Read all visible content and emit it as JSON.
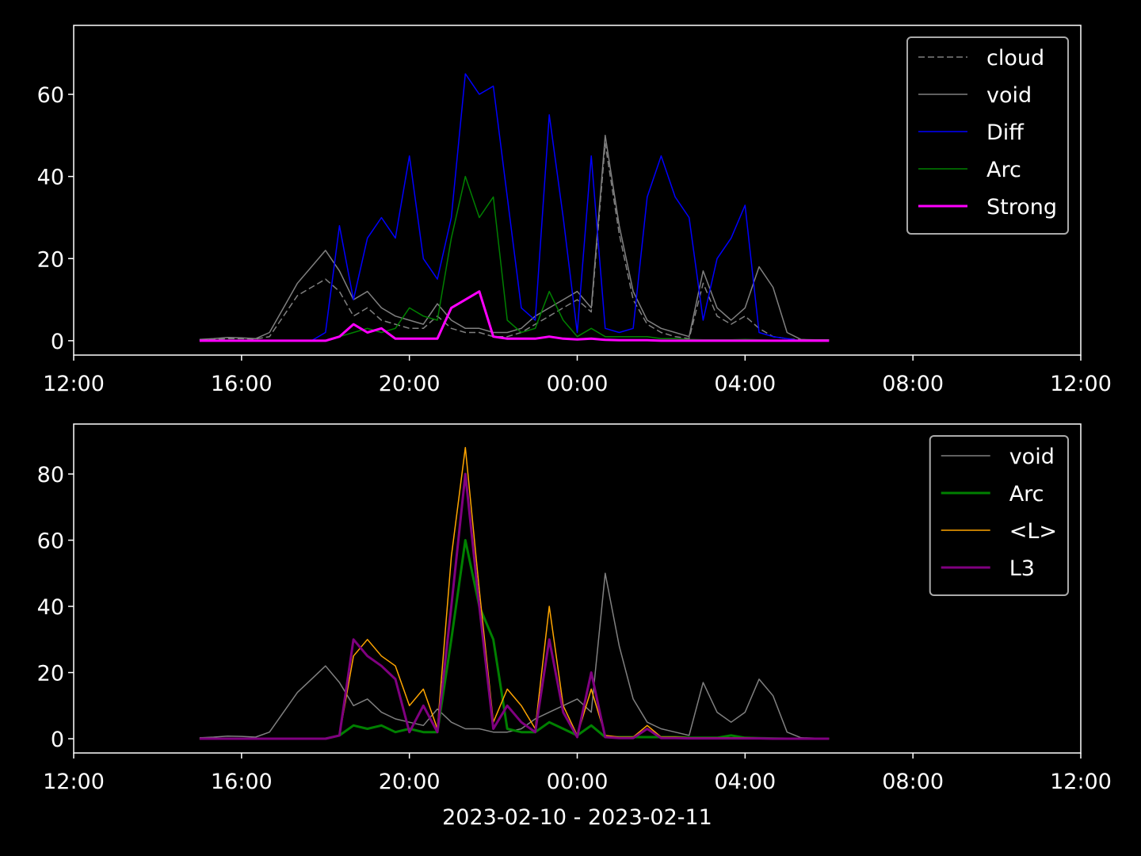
{
  "chart_data": [
    {
      "type": "line",
      "legend": "upper right",
      "x": [
        "2023-02-10 15:00",
        "2023-02-10 15:20",
        "2023-02-10 15:40",
        "2023-02-10 16:00",
        "2023-02-10 16:20",
        "2023-02-10 16:40",
        "2023-02-10 17:00",
        "2023-02-10 17:20",
        "2023-02-10 17:40",
        "2023-02-10 18:00",
        "2023-02-10 18:20",
        "2023-02-10 18:40",
        "2023-02-10 19:00",
        "2023-02-10 19:20",
        "2023-02-10 19:40",
        "2023-02-10 20:00",
        "2023-02-10 20:20",
        "2023-02-10 20:40",
        "2023-02-10 21:00",
        "2023-02-10 21:20",
        "2023-02-10 21:40",
        "2023-02-10 22:00",
        "2023-02-10 22:20",
        "2023-02-10 22:40",
        "2023-02-10 23:00",
        "2023-02-10 23:20",
        "2023-02-10 23:40",
        "2023-02-11 00:00",
        "2023-02-11 00:20",
        "2023-02-11 00:40",
        "2023-02-11 01:00",
        "2023-02-11 01:20",
        "2023-02-11 01:40",
        "2023-02-11 02:00",
        "2023-02-11 02:20",
        "2023-02-11 02:40",
        "2023-02-11 03:00",
        "2023-02-11 03:20",
        "2023-02-11 03:40",
        "2023-02-11 04:00",
        "2023-02-11 04:20",
        "2023-02-11 04:40",
        "2023-02-11 05:00",
        "2023-02-11 05:20",
        "2023-02-11 05:40",
        "2023-02-11 06:00"
      ],
      "xlim": [
        "2023-02-10 12:00",
        "2023-02-11 12:00"
      ],
      "xticks": [
        {
          "value": "2023-02-10 12:00",
          "label": "12:00"
        },
        {
          "value": "2023-02-10 16:00",
          "label": "16:00"
        },
        {
          "value": "2023-02-10 20:00",
          "label": "20:00"
        },
        {
          "value": "2023-02-11 00:00",
          "label": "00:00"
        },
        {
          "value": "2023-02-11 04:00",
          "label": "04:00"
        },
        {
          "value": "2023-02-11 08:00",
          "label": "08:00"
        },
        {
          "value": "2023-02-11 12:00",
          "label": "12:00"
        }
      ],
      "ylim": [
        -3.5,
        76.8
      ],
      "yticks": [
        0,
        20,
        40,
        60
      ],
      "series": [
        {
          "name": "cloud",
          "color": "#808080",
          "linestyle": "dashed",
          "linewidth": 1.5,
          "values": [
            0.2,
            0.3,
            0.5,
            0.5,
            0.4,
            1,
            6,
            11,
            13,
            15,
            12,
            6,
            8,
            5,
            4,
            3,
            3,
            6,
            3,
            2,
            2,
            1,
            1,
            2,
            4,
            6,
            8,
            10,
            7,
            48,
            26,
            10,
            4,
            2,
            1,
            0.5,
            14,
            6,
            4,
            6,
            3,
            1,
            0.5,
            0.2,
            0.1,
            0.1
          ]
        },
        {
          "name": "void",
          "color": "#808080",
          "linestyle": "solid",
          "linewidth": 1.5,
          "values": [
            0.3,
            0.5,
            0.8,
            0.7,
            0.5,
            2,
            8,
            14,
            18,
            22,
            17,
            10,
            12,
            8,
            6,
            5,
            4,
            9,
            5,
            3,
            3,
            2,
            2,
            3,
            6,
            8,
            10,
            12,
            8,
            50,
            28,
            12,
            5,
            3,
            2,
            1,
            17,
            8,
            5,
            8,
            18,
            13,
            2,
            0.3,
            0.2,
            0.2
          ]
        },
        {
          "name": "Diff",
          "color": "#0000ff",
          "linestyle": "solid",
          "linewidth": 1.5,
          "values": [
            0,
            0,
            0,
            0,
            0,
            0,
            0,
            0,
            0,
            2,
            28,
            10,
            25,
            30,
            25,
            45,
            20,
            15,
            30,
            65,
            60,
            62,
            35,
            8,
            5,
            55,
            30,
            2,
            45,
            3,
            2,
            3,
            35,
            45,
            35,
            30,
            5,
            20,
            25,
            33,
            2,
            1,
            0.5,
            0,
            0,
            0
          ]
        },
        {
          "name": "Arc",
          "color": "#008000",
          "linestyle": "solid",
          "linewidth": 1.5,
          "values": [
            0,
            0,
            0,
            0,
            0,
            0,
            0,
            0,
            0,
            0,
            1,
            2,
            3,
            2,
            3,
            8,
            6,
            5,
            25,
            40,
            30,
            35,
            5,
            2,
            3,
            12,
            5,
            1,
            3,
            1,
            1,
            1,
            1,
            0.5,
            0.5,
            0.3,
            0.2,
            0.2,
            0.2,
            0.3,
            0.2,
            0.1,
            0,
            0,
            0,
            0
          ]
        },
        {
          "name": "Strong",
          "color": "#ff00ff",
          "linestyle": "solid",
          "linewidth": 3,
          "values": [
            0,
            0,
            0,
            0,
            0,
            0,
            0,
            0,
            0,
            0,
            1,
            4,
            2,
            3,
            0.5,
            0.5,
            0.5,
            0.5,
            8,
            10,
            12,
            1,
            0.5,
            0.5,
            0.5,
            1,
            0.5,
            0.3,
            0.5,
            0.2,
            0.1,
            0.1,
            0.1,
            0,
            0,
            0,
            0,
            0,
            0,
            0,
            0,
            0,
            0,
            0,
            0,
            0
          ]
        }
      ]
    },
    {
      "type": "line",
      "legend": "upper right",
      "xlabel": "2023-02-10 - 2023-02-11",
      "x": [
        "2023-02-10 15:00",
        "2023-02-10 15:20",
        "2023-02-10 15:40",
        "2023-02-10 16:00",
        "2023-02-10 16:20",
        "2023-02-10 16:40",
        "2023-02-10 17:00",
        "2023-02-10 17:20",
        "2023-02-10 17:40",
        "2023-02-10 18:00",
        "2023-02-10 18:20",
        "2023-02-10 18:40",
        "2023-02-10 19:00",
        "2023-02-10 19:20",
        "2023-02-10 19:40",
        "2023-02-10 20:00",
        "2023-02-10 20:20",
        "2023-02-10 20:40",
        "2023-02-10 21:00",
        "2023-02-10 21:20",
        "2023-02-10 21:40",
        "2023-02-10 22:00",
        "2023-02-10 22:20",
        "2023-02-10 22:40",
        "2023-02-10 23:00",
        "2023-02-10 23:20",
        "2023-02-10 23:40",
        "2023-02-11 00:00",
        "2023-02-11 00:20",
        "2023-02-11 00:40",
        "2023-02-11 01:00",
        "2023-02-11 01:20",
        "2023-02-11 01:40",
        "2023-02-11 02:00",
        "2023-02-11 02:20",
        "2023-02-11 02:40",
        "2023-02-11 03:00",
        "2023-02-11 03:20",
        "2023-02-11 03:40",
        "2023-02-11 04:00",
        "2023-02-11 04:20",
        "2023-02-11 04:40",
        "2023-02-11 05:00",
        "2023-02-11 05:20",
        "2023-02-11 05:40",
        "2023-02-11 06:00"
      ],
      "xlim": [
        "2023-02-10 12:00",
        "2023-02-11 12:00"
      ],
      "xticks": [
        {
          "value": "2023-02-10 12:00",
          "label": "12:00"
        },
        {
          "value": "2023-02-10 16:00",
          "label": "16:00"
        },
        {
          "value": "2023-02-10 20:00",
          "label": "20:00"
        },
        {
          "value": "2023-02-11 00:00",
          "label": "00:00"
        },
        {
          "value": "2023-02-11 04:00",
          "label": "04:00"
        },
        {
          "value": "2023-02-11 08:00",
          "label": "08:00"
        },
        {
          "value": "2023-02-11 12:00",
          "label": "12:00"
        }
      ],
      "ylim": [
        -4.3,
        95.1
      ],
      "yticks": [
        0,
        20,
        40,
        60,
        80
      ],
      "series": [
        {
          "name": "void",
          "color": "#808080",
          "linestyle": "solid",
          "linewidth": 1.5,
          "values": [
            0.3,
            0.5,
            0.8,
            0.7,
            0.5,
            2,
            8,
            14,
            18,
            22,
            17,
            10,
            12,
            8,
            6,
            5,
            4,
            9,
            5,
            3,
            3,
            2,
            2,
            3,
            6,
            8,
            10,
            12,
            8,
            50,
            28,
            12,
            5,
            3,
            2,
            1,
            17,
            8,
            5,
            8,
            18,
            13,
            2,
            0.3,
            0.2,
            0.2
          ]
        },
        {
          "name": "Arc",
          "color": "#008000",
          "linestyle": "solid",
          "linewidth": 3,
          "values": [
            0,
            0,
            0,
            0,
            0,
            0,
            0,
            0,
            0,
            0,
            1,
            4,
            3,
            4,
            2,
            3,
            2,
            2,
            30,
            60,
            40,
            30,
            3,
            2,
            2,
            5,
            3,
            1,
            4,
            0.5,
            0.5,
            0.5,
            0.5,
            0.5,
            0.5,
            0.3,
            0.3,
            0.3,
            1,
            0.3,
            0.2,
            0.1,
            0,
            0,
            0,
            0
          ]
        },
        {
          "name": "<L>",
          "color": "#ffa500",
          "linestyle": "solid",
          "linewidth": 1.5,
          "values": [
            0,
            0,
            0,
            0,
            0,
            0,
            0,
            0,
            0,
            0,
            1,
            25,
            30,
            25,
            22,
            10,
            15,
            3,
            55,
            88,
            45,
            5,
            15,
            10,
            3,
            40,
            10,
            1,
            15,
            1,
            0.5,
            0.5,
            4,
            0.5,
            0.5,
            0.3,
            0.3,
            0.3,
            0.3,
            0.3,
            0.2,
            0.1,
            0,
            0,
            0,
            0
          ]
        },
        {
          "name": "L3",
          "color": "#800080",
          "linestyle": "solid",
          "linewidth": 3,
          "values": [
            0,
            0,
            0,
            0,
            0,
            0,
            0,
            0,
            0,
            0,
            1,
            30,
            25,
            22,
            18,
            2,
            10,
            2,
            40,
            80,
            40,
            3,
            10,
            5,
            2,
            30,
            8,
            0.5,
            20,
            0.5,
            0.2,
            0.2,
            3,
            0.2,
            0.2,
            0.1,
            0.1,
            0.1,
            0.1,
            0.1,
            0.1,
            0,
            0,
            0,
            0,
            0
          ]
        }
      ]
    }
  ]
}
